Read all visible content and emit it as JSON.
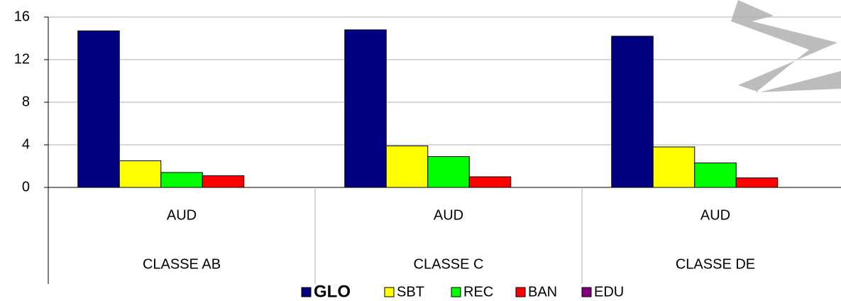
{
  "chart_data": {
    "type": "bar",
    "categories": [
      "AUD",
      "AUD",
      "AUD"
    ],
    "groups": [
      "CLASSE AB",
      "CLASSE C",
      "CLASSE DE"
    ],
    "series": [
      {
        "name": "GLO",
        "color": "#000080",
        "values": [
          14.7,
          14.8,
          14.2
        ]
      },
      {
        "name": "SBT",
        "color": "#ffff00",
        "values": [
          2.5,
          3.9,
          3.8
        ]
      },
      {
        "name": "REC",
        "color": "#00ff00",
        "values": [
          1.4,
          2.9,
          2.3
        ]
      },
      {
        "name": "BAN",
        "color": "#ff0000",
        "values": [
          1.1,
          1.0,
          0.9
        ]
      },
      {
        "name": "EDU",
        "color": "#800080",
        "values": [
          0,
          0,
          0
        ]
      }
    ],
    "ylim": [
      0,
      16
    ],
    "yticks": [
      0,
      4,
      8,
      12,
      16
    ],
    "grid": true,
    "legend": "bottom"
  }
}
